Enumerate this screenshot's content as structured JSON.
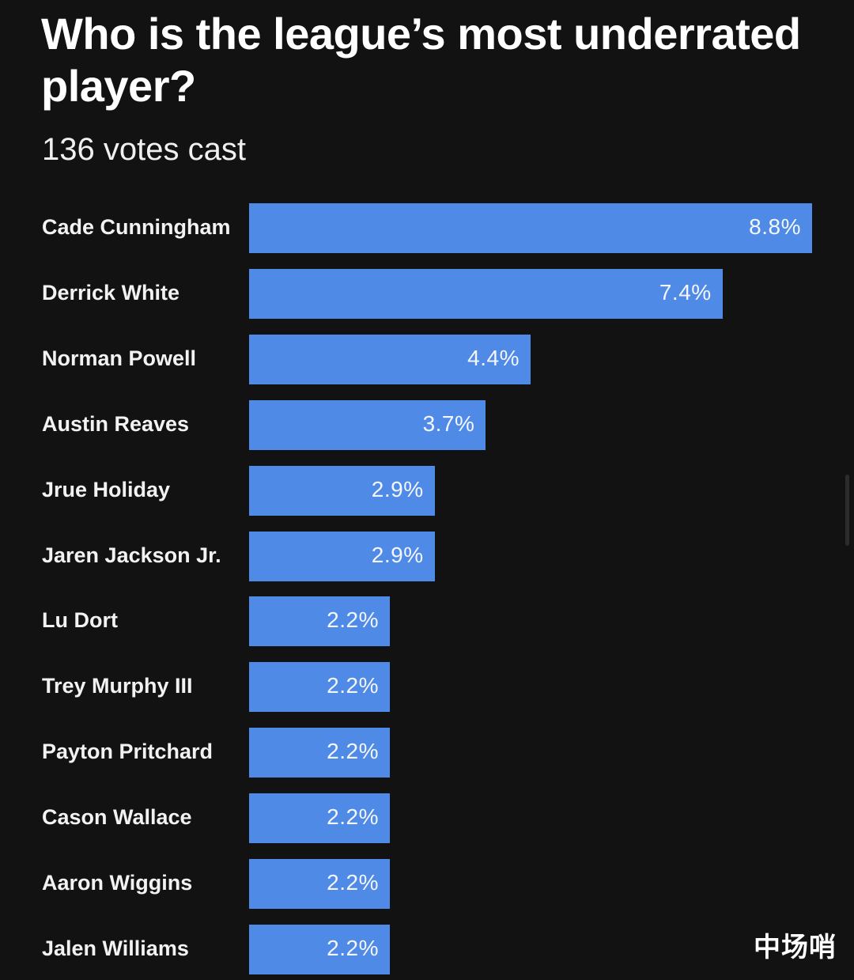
{
  "header": {
    "title": "Who is the league’s most underrated player?",
    "subtitle": "136 votes cast"
  },
  "watermark": "中场哨",
  "colors": {
    "background": "#121212",
    "bar": "#4f8ae6",
    "text": "#ffffff"
  },
  "chart_data": {
    "type": "bar",
    "orientation": "horizontal",
    "title": "Who is the league’s most underrated player?",
    "subtitle": "136 votes cast",
    "xlabel": "",
    "ylabel": "",
    "xlim": [
      0,
      8.8
    ],
    "grid": false,
    "legend": "none",
    "categories": [
      "Cade Cunningham",
      "Derrick White",
      "Norman Powell",
      "Austin Reaves",
      "Jrue Holiday",
      "Jaren Jackson Jr.",
      "Lu Dort",
      "Trey Murphy III",
      "Payton Pritchard",
      "Cason Wallace",
      "Aaron Wiggins",
      "Jalen Williams"
    ],
    "values": [
      8.8,
      7.4,
      4.4,
      3.7,
      2.9,
      2.9,
      2.2,
      2.2,
      2.2,
      2.2,
      2.2,
      2.2
    ],
    "value_labels": [
      "8.8%",
      "7.4%",
      "4.4%",
      "3.7%",
      "2.9%",
      "2.9%",
      "2.2%",
      "2.2%",
      "2.2%",
      "2.2%",
      "2.2%",
      "2.2%"
    ]
  }
}
